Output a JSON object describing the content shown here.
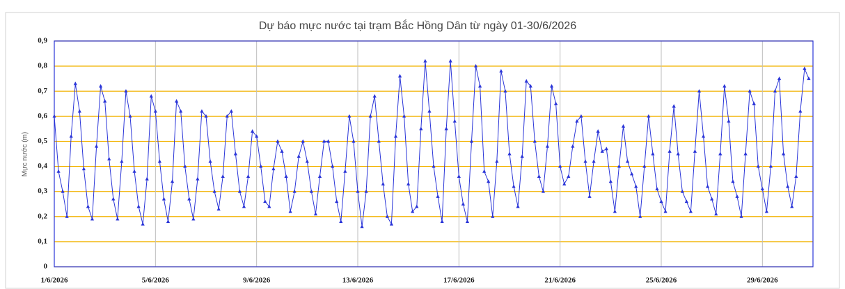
{
  "chart_data": {
    "type": "line",
    "title": "Dự báo mực nước tại trạm Bắc Hồng Dân từ ngày 01-30/6/2026",
    "y_label": "Mực nước (m)",
    "categories": [
      "1/6/2026",
      null,
      null,
      null,
      null,
      null,
      null,
      null,
      null,
      null,
      null,
      null,
      null,
      null,
      null,
      null,
      null,
      null,
      null,
      null,
      null,
      null,
      null,
      null,
      "5/6/2026",
      null,
      null,
      null,
      null,
      null,
      null,
      null,
      null,
      null,
      null,
      null,
      null,
      null,
      null,
      null,
      null,
      null,
      null,
      null,
      null,
      null,
      null,
      null,
      "9/6/2026",
      null,
      null,
      null,
      null,
      null,
      null,
      null,
      null,
      null,
      null,
      null,
      null,
      null,
      null,
      null,
      null,
      null,
      null,
      null,
      null,
      null,
      null,
      null,
      "13/6/2026",
      null,
      null,
      null,
      null,
      null,
      null,
      null,
      null,
      null,
      null,
      null,
      null,
      null,
      null,
      null,
      null,
      null,
      null,
      null,
      null,
      null,
      null,
      null,
      "17/6/2026",
      null,
      null,
      null,
      null,
      null,
      null,
      null,
      null,
      null,
      null,
      null,
      null,
      null,
      null,
      null,
      null,
      null,
      null,
      null,
      null,
      null,
      null,
      null,
      "21/6/2026",
      null,
      null,
      null,
      null,
      null,
      null,
      null,
      null,
      null,
      null,
      null,
      null,
      null,
      null,
      null,
      null,
      null,
      null,
      null,
      null,
      null,
      null,
      null,
      "25/6/2026",
      null,
      null,
      null,
      null,
      null,
      null,
      null,
      null,
      null,
      null,
      null,
      null,
      null,
      null,
      null,
      null,
      null,
      null,
      null,
      null,
      null,
      null,
      null,
      "29/6/2026",
      null,
      null,
      null,
      null,
      null,
      null,
      null,
      null,
      null,
      null,
      null
    ],
    "series": [
      {
        "color": "#2a35d8",
        "values": [
          0.6,
          0.38,
          0.3,
          0.2,
          0.52,
          0.73,
          0.62,
          0.39,
          0.24,
          0.19,
          0.48,
          0.72,
          0.66,
          0.43,
          0.27,
          0.19,
          0.42,
          0.7,
          0.6,
          0.38,
          0.24,
          0.17,
          0.35,
          0.68,
          0.62,
          0.42,
          0.27,
          0.18,
          0.34,
          0.66,
          0.62,
          0.4,
          0.27,
          0.19,
          0.35,
          0.62,
          0.6,
          0.42,
          0.3,
          0.23,
          0.36,
          0.6,
          0.62,
          0.45,
          0.3,
          0.24,
          0.36,
          0.54,
          0.52,
          0.4,
          0.26,
          0.24,
          0.39,
          0.5,
          0.46,
          0.36,
          0.22,
          0.3,
          0.44,
          0.5,
          0.42,
          0.3,
          0.21,
          0.36,
          0.5,
          0.5,
          0.4,
          0.26,
          0.18,
          0.38,
          0.6,
          0.5,
          0.3,
          0.16,
          0.3,
          0.6,
          0.68,
          0.5,
          0.33,
          0.2,
          0.17,
          0.52,
          0.76,
          0.6,
          0.33,
          0.22,
          0.24,
          0.55,
          0.82,
          0.62,
          0.4,
          0.28,
          0.18,
          0.55,
          0.82,
          0.58,
          0.36,
          0.25,
          0.18,
          0.5,
          0.8,
          0.72,
          0.38,
          0.34,
          0.2,
          0.42,
          0.78,
          0.7,
          0.45,
          0.32,
          0.24,
          0.44,
          0.74,
          0.72,
          0.5,
          0.36,
          0.3,
          0.48,
          0.72,
          0.65,
          0.4,
          0.33,
          0.36,
          0.48,
          0.58,
          0.6,
          0.42,
          0.28,
          0.42,
          0.54,
          0.46,
          0.47,
          0.34,
          0.22,
          0.4,
          0.56,
          0.42,
          0.37,
          0.32,
          0.2,
          0.4,
          0.6,
          0.45,
          0.31,
          0.26,
          0.22,
          0.46,
          0.64,
          0.45,
          0.3,
          0.26,
          0.22,
          0.46,
          0.7,
          0.52,
          0.32,
          0.27,
          0.21,
          0.45,
          0.72,
          0.58,
          0.34,
          0.28,
          0.2,
          0.45,
          0.7,
          0.65,
          0.4,
          0.31,
          0.22,
          0.4,
          0.7,
          0.75,
          0.45,
          0.32,
          0.24,
          0.36,
          0.62,
          0.79,
          0.75
        ]
      }
    ],
    "ylim": [
      0,
      0.9
    ],
    "yticks": [
      0,
      {
        "value": 0.1,
        "label": "0,1"
      },
      {
        "value": 0.2,
        "label": "0,2"
      },
      {
        "value": 0.3,
        "label": "0,3"
      },
      {
        "value": 0.4,
        "label": "0,4"
      },
      {
        "value": 0.5,
        "label": "0,5"
      },
      {
        "value": 0.6,
        "label": "0,6"
      },
      {
        "value": 0.7,
        "label": "0,7"
      },
      {
        "value": 0.8,
        "label": "0,8"
      },
      {
        "value": 0.9,
        "label": "0,9"
      }
    ],
    "grid": true,
    "grid_color": "#f2b300"
  }
}
